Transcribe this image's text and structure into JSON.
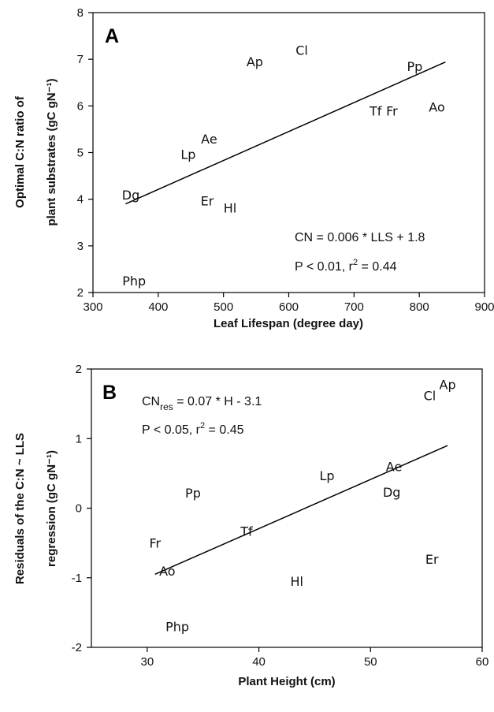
{
  "chart_data": [
    {
      "panel": "A",
      "type": "scatter",
      "xlabel": "Leaf Lifespan (degree day)",
      "ylabel_lines": [
        "Optimal C:N ratio of",
        "plant substrates (gC gN⁻¹)"
      ],
      "xlim": [
        300,
        900
      ],
      "ylim": [
        2,
        8
      ],
      "xticks": [
        300,
        400,
        500,
        600,
        700,
        800,
        900
      ],
      "yticks": [
        2,
        3,
        4,
        5,
        6,
        7,
        8
      ],
      "points": [
        {
          "label": "Ap",
          "x": 548,
          "y": 6.95
        },
        {
          "label": "Cl",
          "x": 620,
          "y": 7.2
        },
        {
          "label": "Pp",
          "x": 793,
          "y": 6.85
        },
        {
          "label": "Tf",
          "x": 733,
          "y": 5.9
        },
        {
          "label": "Fr",
          "x": 758,
          "y": 5.9
        },
        {
          "label": "Ao",
          "x": 827,
          "y": 5.98
        },
        {
          "label": "Ae",
          "x": 478,
          "y": 5.3
        },
        {
          "label": "Lp",
          "x": 446,
          "y": 4.97
        },
        {
          "label": "Dg",
          "x": 358,
          "y": 4.1
        },
        {
          "label": "Er",
          "x": 475,
          "y": 3.97
        },
        {
          "label": "Hl",
          "x": 510,
          "y": 3.82
        },
        {
          "label": "Php",
          "x": 363,
          "y": 2.25
        }
      ],
      "fit": {
        "x": [
          350,
          840
        ],
        "y": [
          3.9,
          6.94
        ]
      },
      "annotations": [
        {
          "text": "CN = 0.006 * LLS + 1.8"
        },
        {
          "text_pre": "P < 0.01, r",
          "sup": "2",
          "text_post": " = 0.44"
        }
      ]
    },
    {
      "panel": "B",
      "type": "scatter",
      "xlabel": "Plant Height (cm)",
      "ylabel_lines": [
        "Residuals of the C:N ~ LLS",
        "regression (gC gN⁻¹)"
      ],
      "xlim": [
        25,
        60
      ],
      "ylim": [
        -2,
        2
      ],
      "xticks": [
        30,
        40,
        50,
        60
      ],
      "yticks": [
        -2,
        -1,
        0,
        1,
        2
      ],
      "points": [
        {
          "label": "Ap",
          "x": 56.9,
          "y": 1.78
        },
        {
          "label": "Cl",
          "x": 55.3,
          "y": 1.62
        },
        {
          "label": "Lp",
          "x": 46.1,
          "y": 0.47
        },
        {
          "label": "Ae",
          "x": 52.1,
          "y": 0.6
        },
        {
          "label": "Dg",
          "x": 51.9,
          "y": 0.23
        },
        {
          "label": "Pp",
          "x": 34.1,
          "y": 0.22
        },
        {
          "label": "Fr",
          "x": 30.7,
          "y": -0.5
        },
        {
          "label": "Tf",
          "x": 38.9,
          "y": -0.33
        },
        {
          "label": "Ao",
          "x": 31.8,
          "y": -0.9
        },
        {
          "label": "Hl",
          "x": 43.4,
          "y": -1.05
        },
        {
          "label": "Er",
          "x": 55.5,
          "y": -0.73
        },
        {
          "label": "Php",
          "x": 32.7,
          "y": -1.7
        }
      ],
      "fit": {
        "x": [
          30.7,
          56.9
        ],
        "y": [
          -0.95,
          0.9
        ]
      },
      "annotations": [
        {
          "text_pre": "CN",
          "sub": "res",
          "text_post": " = 0.07 * H - 3.1"
        },
        {
          "text_pre": "P < 0.05, r",
          "sup": "2",
          "text_post": " = 0.45"
        }
      ]
    }
  ]
}
